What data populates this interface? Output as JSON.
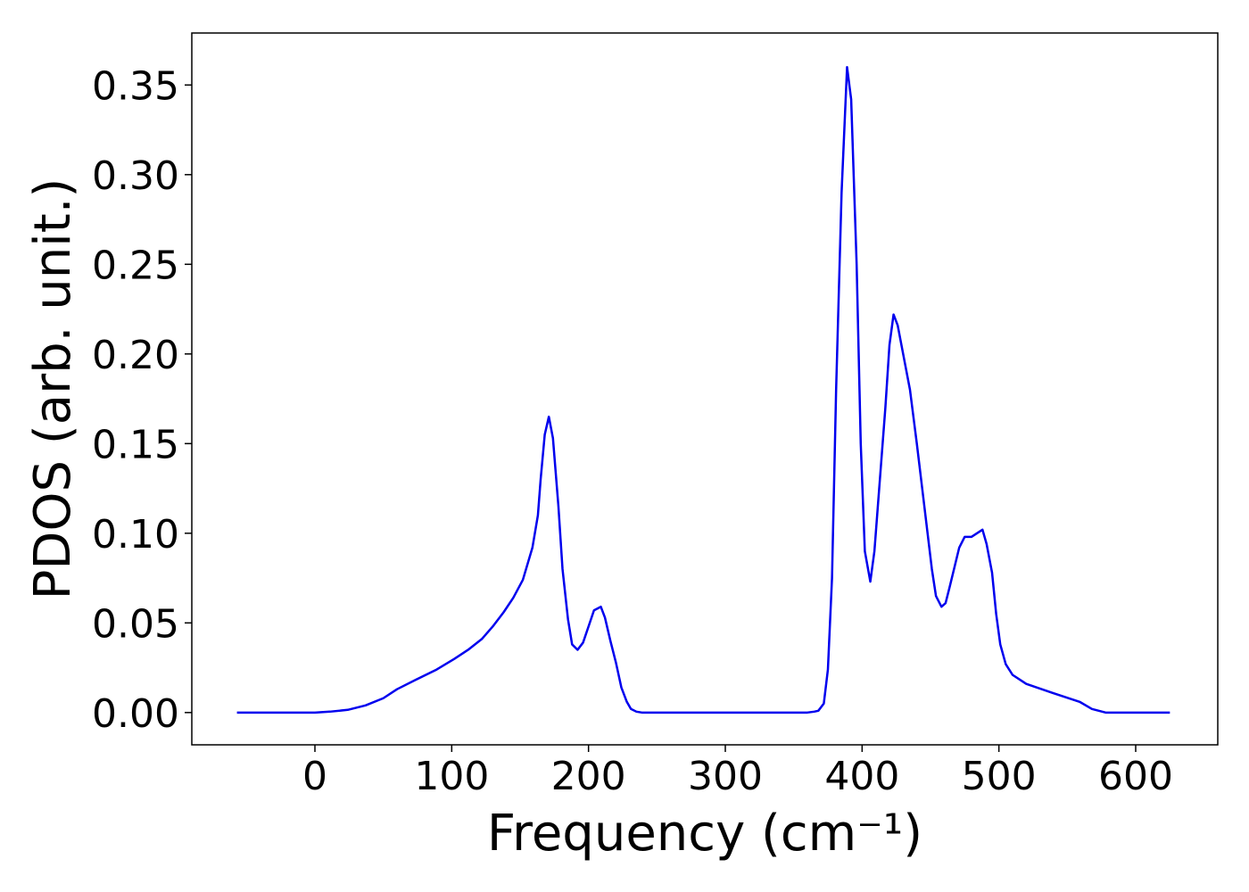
{
  "chart_data": {
    "type": "line",
    "x_label": "Frequency (cm⁻¹)",
    "y_label": "PDOS (arb. unit.)",
    "x": [
      -57,
      0,
      11,
      24,
      37,
      50,
      60,
      73,
      89,
      102,
      112,
      122,
      130,
      138,
      145,
      152,
      159,
      163,
      165,
      168,
      171,
      174,
      178,
      181,
      185,
      188,
      192,
      196,
      200,
      204,
      209,
      212,
      216,
      220,
      224,
      228,
      231,
      235,
      239,
      360,
      365,
      368,
      372,
      375,
      378,
      381,
      385,
      389,
      392,
      396,
      399,
      402,
      406,
      409,
      417,
      420,
      423,
      426,
      435,
      440,
      451,
      454,
      458,
      461,
      464,
      471,
      475,
      478,
      480,
      484,
      488,
      491,
      495,
      498,
      501,
      505,
      510,
      520,
      539,
      559,
      568,
      578,
      625
    ],
    "series": [
      {
        "name": "PDOS",
        "color": "#0000ee",
        "values": [
          0,
          0,
          0.0005,
          0.0015,
          0.004,
          0.008,
          0.013,
          0.018,
          0.024,
          0.03,
          0.035,
          0.041,
          0.048,
          0.056,
          0.064,
          0.074,
          0.092,
          0.11,
          0.13,
          0.155,
          0.165,
          0.153,
          0.115,
          0.08,
          0.052,
          0.038,
          0.035,
          0.039,
          0.048,
          0.057,
          0.059,
          0.053,
          0.04,
          0.028,
          0.014,
          0.006,
          0.002,
          0.0005,
          0,
          0,
          0.0005,
          0.001,
          0.005,
          0.024,
          0.075,
          0.18,
          0.29,
          0.36,
          0.342,
          0.25,
          0.15,
          0.09,
          0.073,
          0.09,
          0.17,
          0.205,
          0.222,
          0.216,
          0.18,
          0.15,
          0.08,
          0.065,
          0.059,
          0.061,
          0.07,
          0.092,
          0.098,
          0.098,
          0.098,
          0.1,
          0.102,
          0.094,
          0.078,
          0.055,
          0.038,
          0.027,
          0.021,
          0.016,
          0.011,
          0.006,
          0.002,
          0,
          0
        ]
      }
    ],
    "xlim": [
      -90,
      660
    ],
    "ylim": [
      -0.018,
      0.379
    ],
    "xticks": [
      0,
      100,
      200,
      300,
      400,
      500,
      600
    ],
    "yticks": [
      {
        "value": 0,
        "label": "0.00"
      },
      {
        "value": 0.05,
        "label": "0.05"
      },
      {
        "value": 0.1,
        "label": "0.10"
      },
      {
        "value": 0.15,
        "label": "0.15"
      },
      {
        "value": 0.2,
        "label": "0.20"
      },
      {
        "value": 0.25,
        "label": "0.25"
      },
      {
        "value": 0.3,
        "label": "0.30"
      },
      {
        "value": 0.35,
        "label": "0.35"
      }
    ],
    "grid": false
  }
}
